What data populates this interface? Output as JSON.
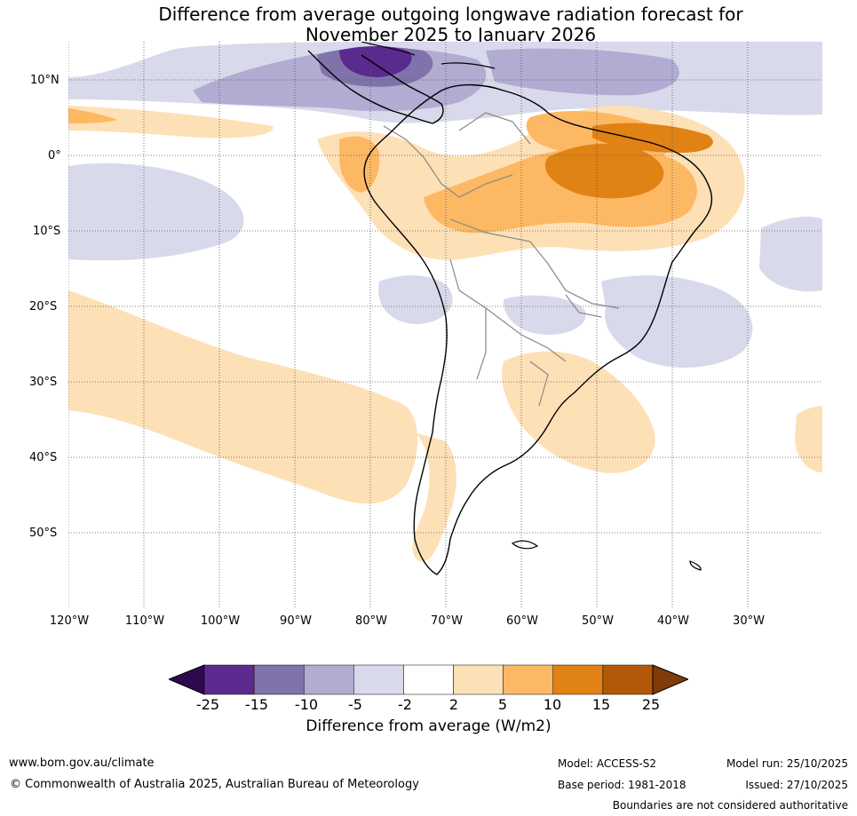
{
  "title": {
    "line1": "Difference from average outgoing longwave radiation forecast for",
    "line2": "November 2025 to January 2026"
  },
  "map": {
    "region": "South America",
    "lat_labels": [
      "10°N",
      "0°",
      "10°S",
      "20°S",
      "30°S",
      "40°S",
      "50°S"
    ],
    "lon_labels": [
      "120°W",
      "110°W",
      "100°W",
      "90°W",
      "80°W",
      "70°W",
      "60°W",
      "50°W",
      "40°W",
      "30°W"
    ]
  },
  "legend": {
    "ticks": [
      "-25",
      "-15",
      "-10",
      "-5",
      "-2",
      "2",
      "5",
      "10",
      "15",
      "25"
    ],
    "title": "Difference from average (W/m2)",
    "colors": [
      "#2d0a4d",
      "#5b2a8f",
      "#8073ac",
      "#b2abd2",
      "#d8daeb",
      "#ffffff",
      "#fee0b6",
      "#fdb863",
      "#e08214",
      "#b35806",
      "#7f3b08"
    ]
  },
  "footer": {
    "website": "www.bom.gov.au/climate",
    "copyright": "© Commonwealth of Australia 2025, Australian Bureau of Meteorology",
    "model": "Model: ACCESS-S2",
    "base_period": "Base period: 1981-2018",
    "model_run": "Model run: 25/10/2025",
    "issued": "Issued: 27/10/2025",
    "disclaimer": "Boundaries are not considered authoritative"
  }
}
